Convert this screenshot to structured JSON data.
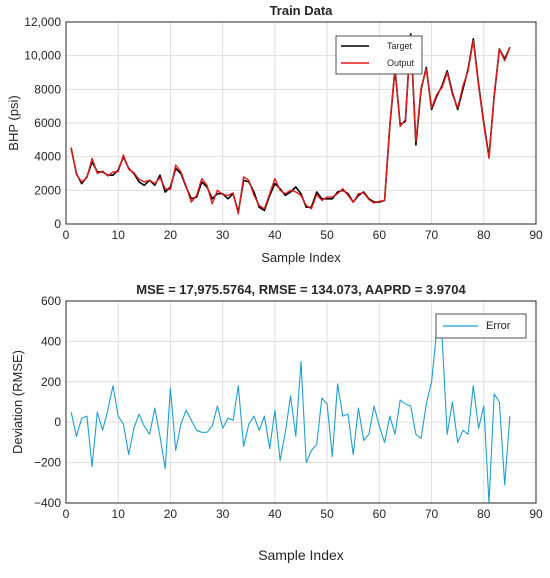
{
  "chart_data": [
    {
      "type": "line",
      "title": "Train Data",
      "xlabel": "Sample Index",
      "ylabel": "BHP (psi)",
      "xlim": [
        0,
        90
      ],
      "ylim": [
        0,
        12000
      ],
      "xticks": [
        0,
        10,
        20,
        30,
        40,
        50,
        60,
        70,
        80,
        90
      ],
      "yticks": [
        0,
        2000,
        4000,
        6000,
        8000,
        10000,
        12000
      ],
      "xtick_labels": [
        "0",
        "10",
        "20",
        "30",
        "40",
        "50",
        "60",
        "70",
        "80",
        "90"
      ],
      "ytick_labels": [
        "0",
        "2000",
        "4000",
        "6000",
        "8000",
        "10,000",
        "12,000"
      ],
      "grid": true,
      "legend_position": "top-right",
      "series": [
        {
          "name": "Target",
          "color": "#000000",
          "x": [
            1,
            2,
            3,
            4,
            5,
            6,
            7,
            8,
            9,
            10,
            11,
            12,
            13,
            14,
            15,
            16,
            17,
            18,
            19,
            20,
            21,
            22,
            23,
            24,
            25,
            26,
            27,
            28,
            29,
            30,
            31,
            32,
            33,
            34,
            35,
            36,
            37,
            38,
            39,
            40,
            41,
            42,
            43,
            44,
            45,
            46,
            47,
            48,
            49,
            50,
            51,
            52,
            53,
            54,
            55,
            56,
            57,
            58,
            59,
            60,
            61,
            62,
            63,
            64,
            65,
            66,
            67,
            68,
            69,
            70,
            71,
            72,
            73,
            74,
            75,
            76,
            77,
            78,
            79,
            80,
            81,
            82,
            83,
            84,
            85
          ],
          "values": [
            4500,
            3000,
            2400,
            2800,
            3700,
            3100,
            3100,
            2900,
            2900,
            3200,
            4000,
            3300,
            3000,
            2500,
            2300,
            2600,
            2300,
            2900,
            1900,
            2200,
            3300,
            3000,
            2200,
            1500,
            1600,
            2500,
            2200,
            1500,
            1800,
            1800,
            1500,
            1800,
            700,
            2600,
            2500,
            1900,
            1000,
            800,
            1700,
            2400,
            2100,
            1700,
            1900,
            2200,
            1800,
            1000,
            1000,
            1900,
            1500,
            1500,
            1500,
            1900,
            2000,
            1800,
            1300,
            1700,
            1900,
            1500,
            1300,
            1300,
            1400,
            5800,
            9200,
            5900,
            6100,
            11300,
            4700,
            8000,
            9300,
            6800,
            7600,
            8200,
            9100,
            7800,
            6800,
            8000,
            9200,
            11000,
            8300,
            6000,
            4000,
            7600,
            10400,
            9800,
            10500
          ]
        },
        {
          "name": "Output",
          "color": "#e41a1c",
          "x": [
            1,
            2,
            3,
            4,
            5,
            6,
            7,
            8,
            9,
            10,
            11,
            12,
            13,
            14,
            15,
            16,
            17,
            18,
            19,
            20,
            21,
            22,
            23,
            24,
            25,
            26,
            27,
            28,
            29,
            30,
            31,
            32,
            33,
            34,
            35,
            36,
            37,
            38,
            39,
            40,
            41,
            42,
            43,
            44,
            45,
            46,
            47,
            48,
            49,
            50,
            51,
            52,
            53,
            54,
            55,
            56,
            57,
            58,
            59,
            60,
            61,
            62,
            63,
            64,
            65,
            66,
            67,
            68,
            69,
            70,
            71,
            72,
            73,
            74,
            75,
            76,
            77,
            78,
            79,
            80,
            81,
            82,
            83,
            84,
            85
          ],
          "values": [
            4550,
            2950,
            2500,
            2750,
            3900,
            3000,
            3150,
            2850,
            3100,
            3100,
            4100,
            3250,
            3050,
            2650,
            2500,
            2600,
            2400,
            2750,
            2100,
            2050,
            3500,
            3100,
            2250,
            1300,
            1700,
            2700,
            2300,
            1200,
            2000,
            1750,
            1700,
            1850,
            600,
            2800,
            2600,
            1700,
            1100,
            900,
            1800,
            2700,
            2000,
            1800,
            2000,
            1900,
            1700,
            1100,
            900,
            1750,
            1400,
            1600,
            1600,
            1800,
            2100,
            1700,
            1300,
            1800,
            1850,
            1450,
            1250,
            1350,
            1400,
            5900,
            9300,
            5800,
            6200,
            11200,
            4900,
            8100,
            9200,
            6900,
            7700,
            8100,
            9000,
            7700,
            6900,
            8200,
            9100,
            10900,
            8200,
            5900,
            3900,
            7700,
            10400,
            9700,
            10500
          ]
        }
      ]
    },
    {
      "type": "line",
      "title": "MSE = 17,975.5764, RMSE = 134.073, AAPRD = 3.9704",
      "xlabel": "Sample Index",
      "ylabel": "Deviation (RMSE)",
      "xlim": [
        0,
        90
      ],
      "ylim": [
        -400,
        600
      ],
      "xticks": [
        0,
        10,
        20,
        30,
        40,
        50,
        60,
        70,
        80,
        90
      ],
      "yticks": [
        -400,
        -200,
        0,
        200,
        400,
        600
      ],
      "xtick_labels": [
        "0",
        "10",
        "20",
        "30",
        "40",
        "50",
        "60",
        "70",
        "80",
        "90"
      ],
      "ytick_labels": [
        "−400",
        "−200",
        "0",
        "200",
        "400",
        "600"
      ],
      "grid": true,
      "legend_position": "top-right",
      "series": [
        {
          "name": "Error",
          "color": "#1e9fcf",
          "x": [
            1,
            2,
            3,
            4,
            5,
            6,
            7,
            8,
            9,
            10,
            11,
            12,
            13,
            14,
            15,
            16,
            17,
            18,
            19,
            20,
            21,
            22,
            23,
            24,
            25,
            26,
            27,
            28,
            29,
            30,
            31,
            32,
            33,
            34,
            35,
            36,
            37,
            38,
            39,
            40,
            41,
            42,
            43,
            44,
            45,
            46,
            47,
            48,
            49,
            50,
            51,
            52,
            53,
            54,
            55,
            56,
            57,
            58,
            59,
            60,
            61,
            62,
            63,
            64,
            65,
            66,
            67,
            68,
            69,
            70,
            71,
            72,
            73,
            74,
            75,
            76,
            77,
            78,
            79,
            80,
            81,
            82,
            83,
            84,
            85
          ],
          "values": [
            50,
            -70,
            20,
            30,
            -220,
            50,
            -40,
            60,
            180,
            30,
            -10,
            -160,
            -30,
            40,
            -20,
            -60,
            70,
            -70,
            -230,
            170,
            -140,
            -10,
            60,
            10,
            -40,
            -50,
            -50,
            -20,
            80,
            -30,
            20,
            10,
            180,
            -120,
            -10,
            30,
            -40,
            30,
            -130,
            60,
            -190,
            -50,
            130,
            -70,
            300,
            -200,
            -140,
            -110,
            120,
            90,
            -170,
            190,
            30,
            40,
            -160,
            70,
            -90,
            -60,
            80,
            -20,
            -100,
            30,
            -60,
            110,
            90,
            80,
            -60,
            -80,
            90,
            200,
            460,
            430,
            -60,
            100,
            -100,
            -40,
            -60,
            180,
            -30,
            80,
            -400,
            140,
            100,
            -310,
            30
          ]
        }
      ]
    }
  ],
  "external_xlabel": "Sample Index"
}
